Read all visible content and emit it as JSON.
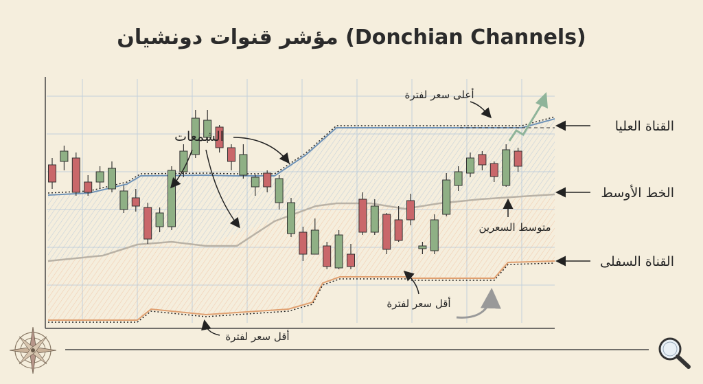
{
  "title": "مؤشر قنوات دونشيان (Donchian Channels)",
  "labels": {
    "upper": "القناة العليا",
    "middle": "الخط الأوسط",
    "lower": "القناة السفلى",
    "candles": "الشمعات",
    "highest_high": "أعلى سعر لفترة",
    "middle_desc": "متوسط السعرين",
    "lowest_low_1": "أقل سعر لفترة",
    "lowest_low_2": "أقل سعر لفترة"
  },
  "icons": [
    "compass-rose-icon",
    "magnifier-icon"
  ],
  "colors": {
    "bull": "#8fb085",
    "bear": "#c9676a",
    "upper_line": "#6f93b8",
    "lower_line": "#e0a070",
    "middle_line": "#b9b2a6",
    "arrow_up": "#8fb49a"
  },
  "candles": [
    {
      "o": 380,
      "c": 355,
      "h": 390,
      "l": 345
    },
    {
      "o": 385,
      "c": 400,
      "h": 408,
      "l": 372
    },
    {
      "o": 390,
      "c": 340,
      "h": 398,
      "l": 335
    },
    {
      "o": 355,
      "c": 340,
      "h": 365,
      "l": 335
    },
    {
      "o": 355,
      "c": 370,
      "h": 378,
      "l": 345
    },
    {
      "o": 345,
      "c": 375,
      "h": 385,
      "l": 340
    },
    {
      "o": 315,
      "c": 342,
      "h": 350,
      "l": 310
    },
    {
      "o": 332,
      "c": 320,
      "h": 345,
      "l": 312
    },
    {
      "o": 318,
      "c": 272,
      "h": 325,
      "l": 265
    },
    {
      "o": 290,
      "c": 310,
      "h": 318,
      "l": 282
    },
    {
      "o": 290,
      "c": 372,
      "h": 378,
      "l": 285
    },
    {
      "o": 370,
      "c": 400,
      "h": 410,
      "l": 362
    },
    {
      "o": 395,
      "c": 448,
      "h": 460,
      "l": 390
    },
    {
      "o": 420,
      "c": 445,
      "h": 460,
      "l": 412
    },
    {
      "o": 435,
      "c": 405,
      "h": 438,
      "l": 398
    },
    {
      "o": 405,
      "c": 385,
      "h": 410,
      "l": 372
    },
    {
      "o": 365,
      "c": 395,
      "h": 410,
      "l": 360
    },
    {
      "o": 348,
      "c": 362,
      "h": 366,
      "l": 335
    },
    {
      "o": 368,
      "c": 348,
      "h": 372,
      "l": 340
    },
    {
      "o": 325,
      "c": 360,
      "h": 365,
      "l": 315
    },
    {
      "o": 280,
      "c": 325,
      "h": 332,
      "l": 275
    },
    {
      "o": 282,
      "c": 250,
      "h": 290,
      "l": 240
    },
    {
      "o": 250,
      "c": 285,
      "h": 302,
      "l": 250
    },
    {
      "o": 262,
      "c": 232,
      "h": 268,
      "l": 228
    },
    {
      "o": 230,
      "c": 278,
      "h": 285,
      "l": 228
    },
    {
      "o": 250,
      "c": 232,
      "h": 265,
      "l": 228
    },
    {
      "o": 330,
      "c": 282,
      "h": 340,
      "l": 278
    },
    {
      "o": 282,
      "c": 320,
      "h": 330,
      "l": 278
    },
    {
      "o": 308,
      "c": 257,
      "h": 310,
      "l": 250
    },
    {
      "o": 300,
      "c": 270,
      "h": 320,
      "l": 268
    },
    {
      "o": 328,
      "c": 300,
      "h": 338,
      "l": 292
    },
    {
      "o": 258,
      "c": 262,
      "h": 268,
      "l": 250
    },
    {
      "o": 255,
      "c": 300,
      "h": 308,
      "l": 250
    },
    {
      "o": 308,
      "c": 358,
      "h": 368,
      "l": 305
    },
    {
      "o": 350,
      "c": 370,
      "h": 378,
      "l": 342
    },
    {
      "o": 368,
      "c": 390,
      "h": 398,
      "l": 362
    },
    {
      "o": 395,
      "c": 380,
      "h": 400,
      "l": 372
    },
    {
      "o": 382,
      "c": 363,
      "h": 385,
      "l": 355
    },
    {
      "o": 350,
      "c": 402,
      "h": 410,
      "l": 348
    },
    {
      "o": 400,
      "c": 378,
      "h": 405,
      "l": 370
    }
  ]
}
